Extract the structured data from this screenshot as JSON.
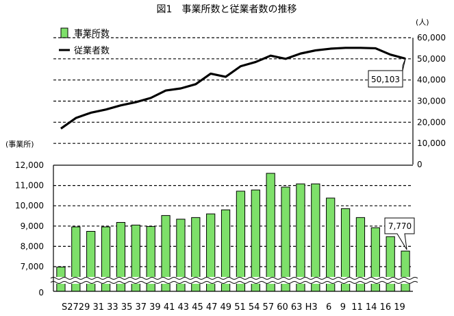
{
  "chart_data": {
    "type": "bar-line",
    "title": "図1　事業所数と従業者数の推移",
    "categories": [
      "S27",
      "29",
      "31",
      "33",
      "35",
      "37",
      "39",
      "41",
      "43",
      "45",
      "47",
      "49",
      "51",
      "54",
      "57",
      "60",
      "63",
      "H3",
      "6",
      "9",
      "11",
      "14",
      "16",
      "19"
    ],
    "x_tick_text": "S2729 31 33 35 37 39 41 43 45 47 49 51 54 57 60 63 H3   6   9  11 14 16 19",
    "series": [
      {
        "name": "事業所数",
        "kind": "bar",
        "color": "#7ee06a",
        "values": [
          6980,
          8960,
          8740,
          8960,
          9180,
          9050,
          8980,
          9520,
          9340,
          9420,
          9600,
          9800,
          10720,
          10780,
          11600,
          10920,
          11080,
          11080,
          10380,
          9860,
          9420,
          8920,
          8480,
          7770
        ]
      },
      {
        "name": "従業者数",
        "kind": "line",
        "color": "#000000",
        "values": [
          17000,
          22000,
          24500,
          26000,
          28000,
          29500,
          31500,
          35000,
          36000,
          38000,
          43000,
          41500,
          46500,
          48500,
          51500,
          50000,
          52500,
          54000,
          54800,
          55200,
          55200,
          55000,
          52000,
          50103
        ]
      }
    ],
    "y_bars": {
      "label": "(事業所)",
      "ylim": [
        6000,
        12000
      ],
      "ticks": [
        7000,
        8000,
        9000,
        10000,
        11000,
        12000
      ],
      "tick_labels": [
        "7,000",
        "8,000",
        "9,000",
        "10,000",
        "11,000",
        "12,000"
      ],
      "zero_label": "0"
    },
    "y_line": {
      "label": "(人)",
      "ylim": [
        0,
        60000
      ],
      "ticks": [
        0,
        10000,
        20000,
        30000,
        40000,
        50000,
        60000
      ],
      "tick_labels": [
        "0",
        "10,000",
        "20,000",
        "30,000",
        "40,000",
        "50,000",
        "60,000"
      ]
    },
    "annotations": [
      {
        "text": "50,103",
        "series": "従業者数",
        "index": 23
      },
      {
        "text": "7,770",
        "series": "事業所数",
        "index": 23
      }
    ],
    "legend": {
      "position": "top-left",
      "items": [
        "事業所数",
        "従業者数"
      ]
    },
    "grid": "dashed horizontal"
  }
}
